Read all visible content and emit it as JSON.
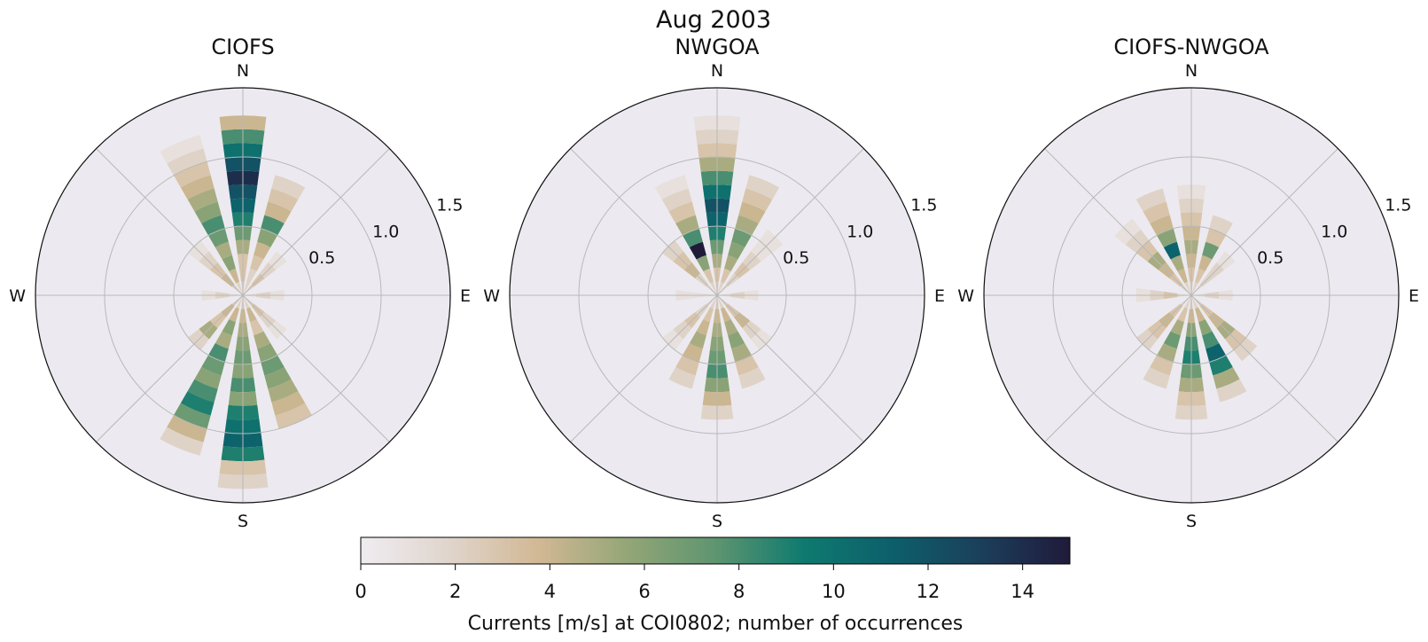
{
  "suptitle": "Aug 2003",
  "compass": {
    "n": "N",
    "e": "E",
    "s": "S",
    "w": "W"
  },
  "colorbar": {
    "label": "Currents [m/s] at COI0802; number of occurrences",
    "ticks": [
      "0",
      "2",
      "4",
      "6",
      "8",
      "10",
      "12",
      "14"
    ],
    "range": [
      0,
      15
    ],
    "colormap": [
      "#efecf1",
      "#e0d5cc",
      "#d2b894",
      "#94a677",
      "#5e9570",
      "#0e7a6f",
      "#0d5f6b",
      "#1b3f5b",
      "#201a3a"
    ]
  },
  "chart_data": [
    {
      "type": "polar_histogram",
      "title": "CIOFS",
      "radial_ticks": [
        "0.5",
        "1.0",
        "1.5"
      ],
      "r_max": 1.5,
      "sector_bins": [
        {
          "dir": "N",
          "counts": [
            2,
            3,
            3,
            5,
            7,
            9,
            11,
            12,
            14,
            12,
            10,
            8,
            4
          ]
        },
        {
          "dir": "NNE",
          "counts": [
            2,
            2,
            3,
            4,
            6,
            8,
            4,
            3,
            2
          ]
        },
        {
          "dir": "NE",
          "counts": [
            2,
            3,
            2,
            1
          ]
        },
        {
          "dir": "E",
          "counts": [
            1,
            2,
            1
          ]
        },
        {
          "dir": "SE",
          "counts": [
            2,
            3,
            2,
            1
          ]
        },
        {
          "dir": "SSE",
          "counts": [
            2,
            4,
            3,
            5,
            6,
            7,
            6,
            5,
            4,
            3
          ]
        },
        {
          "dir": "S",
          "counts": [
            2,
            4,
            5,
            6,
            7,
            6,
            8,
            6,
            9,
            10,
            11,
            9,
            3,
            2
          ]
        },
        {
          "dir": "SSW",
          "counts": [
            2,
            4,
            6,
            5,
            8,
            7,
            6,
            8,
            9,
            7,
            4,
            2
          ]
        },
        {
          "dir": "SW",
          "counts": [
            2,
            4,
            3,
            5,
            2
          ]
        },
        {
          "dir": "W",
          "counts": [
            1,
            2,
            1
          ]
        },
        {
          "dir": "NW",
          "counts": [
            2,
            4,
            3,
            2,
            1
          ]
        },
        {
          "dir": "NNW",
          "counts": [
            2,
            4,
            6,
            5,
            7,
            8,
            6,
            5,
            4,
            3,
            2,
            1
          ]
        }
      ]
    },
    {
      "type": "polar_histogram",
      "title": "NWGOA",
      "radial_ticks": [
        "0.5",
        "1.0",
        "1.5"
      ],
      "r_max": 1.5,
      "sector_bins": [
        {
          "dir": "N",
          "counts": [
            2,
            3,
            5,
            7,
            9,
            11,
            12,
            10,
            8,
            5,
            3,
            2,
            1
          ]
        },
        {
          "dir": "NNE",
          "counts": [
            2,
            3,
            5,
            6,
            7,
            5,
            4,
            3,
            2
          ]
        },
        {
          "dir": "NE",
          "counts": [
            1,
            2,
            3,
            2,
            1,
            1
          ]
        },
        {
          "dir": "E",
          "counts": [
            1,
            2,
            1
          ]
        },
        {
          "dir": "SE",
          "counts": [
            2,
            3,
            4,
            2,
            1
          ]
        },
        {
          "dir": "SSE",
          "counts": [
            2,
            4,
            5,
            6,
            5,
            3,
            2
          ]
        },
        {
          "dir": "S",
          "counts": [
            2,
            4,
            5,
            6,
            7,
            8,
            6,
            4,
            2
          ]
        },
        {
          "dir": "SSW",
          "counts": [
            2,
            3,
            4,
            5,
            4,
            3,
            2
          ]
        },
        {
          "dir": "SW",
          "counts": [
            1,
            2,
            3,
            2,
            1
          ]
        },
        {
          "dir": "W",
          "counts": [
            1,
            1,
            1
          ]
        },
        {
          "dir": "NW",
          "counts": [
            1,
            2,
            4,
            3,
            2
          ]
        },
        {
          "dir": "NNW",
          "counts": [
            2,
            3,
            6,
            15,
            8,
            5,
            3,
            2,
            1
          ]
        }
      ]
    },
    {
      "type": "polar_histogram",
      "title": "CIOFS-NWGOA",
      "radial_ticks": [
        "0.5",
        "1.0",
        "1.5"
      ],
      "r_max": 1.5,
      "sector_bins": [
        {
          "dir": "N",
          "counts": [
            2,
            3,
            4,
            5,
            4,
            3,
            2,
            1
          ]
        },
        {
          "dir": "NNE",
          "counts": [
            2,
            3,
            4,
            7,
            3,
            2
          ]
        },
        {
          "dir": "NE",
          "counts": [
            1,
            2,
            2,
            1
          ]
        },
        {
          "dir": "E",
          "counts": [
            1,
            2,
            1
          ]
        },
        {
          "dir": "SE",
          "counts": [
            2,
            3,
            4,
            5,
            3,
            2
          ]
        },
        {
          "dir": "SSE",
          "counts": [
            2,
            4,
            6,
            8,
            11,
            9,
            5,
            2
          ]
        },
        {
          "dir": "S",
          "counts": [
            2,
            4,
            6,
            8,
            9,
            7,
            5,
            3,
            2
          ]
        },
        {
          "dir": "SSW",
          "counts": [
            2,
            3,
            5,
            7,
            5,
            3,
            2
          ]
        },
        {
          "dir": "SW",
          "counts": [
            1,
            3,
            4,
            3,
            2
          ]
        },
        {
          "dir": "W",
          "counts": [
            1,
            3,
            2,
            1
          ]
        },
        {
          "dir": "NW",
          "counts": [
            2,
            3,
            4,
            5,
            3,
            2,
            1
          ]
        },
        {
          "dir": "NNW",
          "counts": [
            2,
            4,
            5,
            11,
            6,
            4,
            3,
            2
          ]
        }
      ]
    }
  ]
}
